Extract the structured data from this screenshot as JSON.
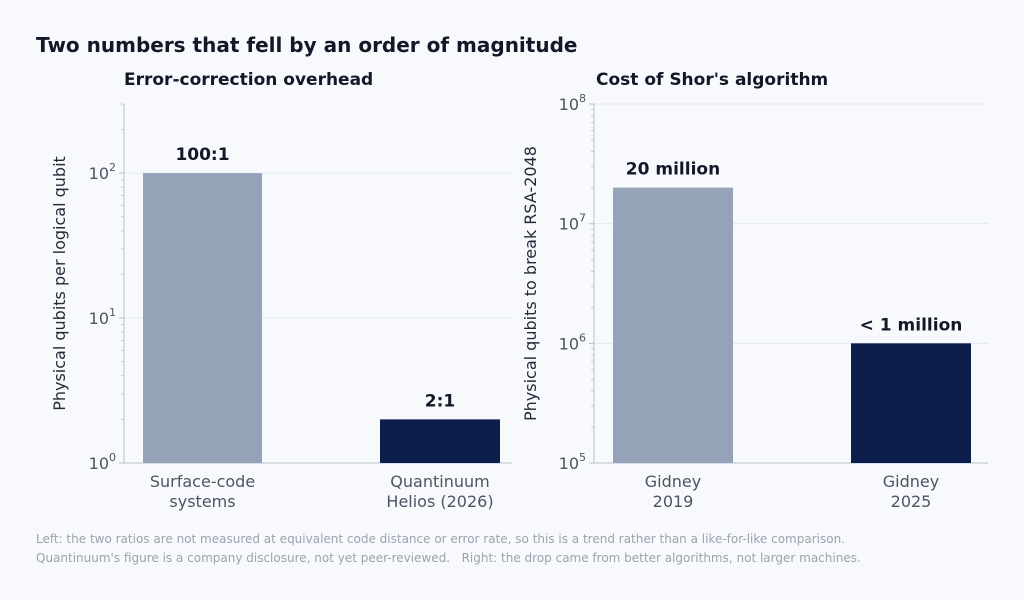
{
  "title": "Two numbers that fell by an order of magnitude",
  "colors": {
    "muted_bar": "#94a3b8",
    "highlight_bar": "#0c1d4b",
    "grid": "#e5e9f0",
    "axis": "#b8c0cb"
  },
  "chart_data": [
    {
      "type": "bar",
      "title": "Error-correction overhead",
      "ylabel": "Physical qubits per logical qubit",
      "yscale": "log",
      "ylim": [
        1,
        300
      ],
      "yticks": [
        {
          "value": 1,
          "base": "10",
          "exp": "0"
        },
        {
          "value": 10,
          "base": "10",
          "exp": "1"
        },
        {
          "value": 100,
          "base": "10",
          "exp": "2"
        }
      ],
      "grid": true,
      "categories": [
        [
          "Surface-code",
          "systems"
        ],
        [
          "Quantinuum",
          "Helios (2026)"
        ]
      ],
      "values": [
        100,
        2
      ],
      "data_labels": [
        "100:1",
        "2:1"
      ],
      "bar_colors": [
        "#94a3b8",
        "#0c1d4b"
      ]
    },
    {
      "type": "bar",
      "title": "Cost of Shor's algorithm",
      "ylabel": "Physical qubits to break RSA-2048",
      "yscale": "log",
      "ylim": [
        100000,
        100000000
      ],
      "yticks": [
        {
          "value": 100000,
          "base": "10",
          "exp": "5"
        },
        {
          "value": 1000000,
          "base": "10",
          "exp": "6"
        },
        {
          "value": 10000000,
          "base": "10",
          "exp": "7"
        },
        {
          "value": 100000000,
          "base": "10",
          "exp": "8"
        }
      ],
      "grid": true,
      "categories": [
        [
          "Gidney",
          "2019"
        ],
        [
          "Gidney",
          "2025"
        ]
      ],
      "values": [
        20000000,
        1000000
      ],
      "data_labels": [
        "20 million",
        "< 1 million"
      ],
      "bar_colors": [
        "#94a3b8",
        "#0c1d4b"
      ]
    }
  ],
  "footnote": [
    "Left: the two ratios are not measured at equivalent code distance or error rate, so this is a trend rather than a like-for-like comparison.",
    "Quantinuum's figure is a company disclosure, not yet peer-reviewed.   Right: the drop came from better algorithms, not larger machines."
  ]
}
